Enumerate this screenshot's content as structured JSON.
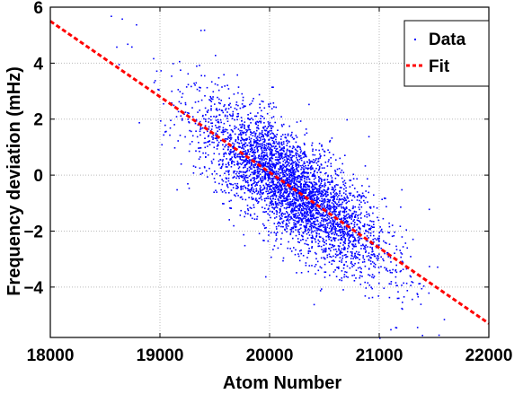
{
  "chart_data": {
    "type": "scatter",
    "title": "",
    "xlabel": "Atom Number",
    "ylabel": "Frequency deviation (mHz)",
    "xlim": [
      18000,
      22000
    ],
    "ylim": [
      -5.8,
      6
    ],
    "xticks": [
      "18000",
      "19000",
      "20000",
      "21000",
      "22000"
    ],
    "yticks": [
      "-4",
      "-2",
      "0",
      "2",
      "4",
      "6"
    ],
    "grid": true,
    "legend_position": "top-right",
    "series": [
      {
        "name": "Data",
        "kind": "scatter",
        "color": "#0000ff",
        "n_points_approx": 4000,
        "x_center": 20200,
        "x_std": 420,
        "y_residual_std": 0.95,
        "points": [
          [
            18550,
            5.7
          ],
          [
            18650,
            5.6
          ],
          [
            18700,
            4.7
          ],
          [
            18950,
            3.4
          ],
          [
            19100,
            2.6
          ],
          [
            19400,
            5.2
          ],
          [
            19500,
            4.3
          ],
          [
            19150,
            -0.5
          ],
          [
            19300,
            0.1
          ],
          [
            19700,
            3.6
          ],
          [
            21100,
            -5.5
          ],
          [
            21250,
            -4.1
          ],
          [
            21200,
            -0.5
          ],
          [
            20900,
            1.4
          ],
          [
            21450,
            -1.2
          ],
          [
            19900,
            2.9
          ],
          [
            20400,
            -4.6
          ],
          [
            21000,
            -5.8
          ],
          [
            18600,
            4.6
          ],
          [
            20700,
            2.0
          ]
        ]
      },
      {
        "name": "Fit",
        "kind": "line",
        "style": "dashed",
        "color": "#ff0000",
        "x": [
          18000,
          22000
        ],
        "y": [
          5.5,
          -5.3
        ]
      }
    ]
  }
}
